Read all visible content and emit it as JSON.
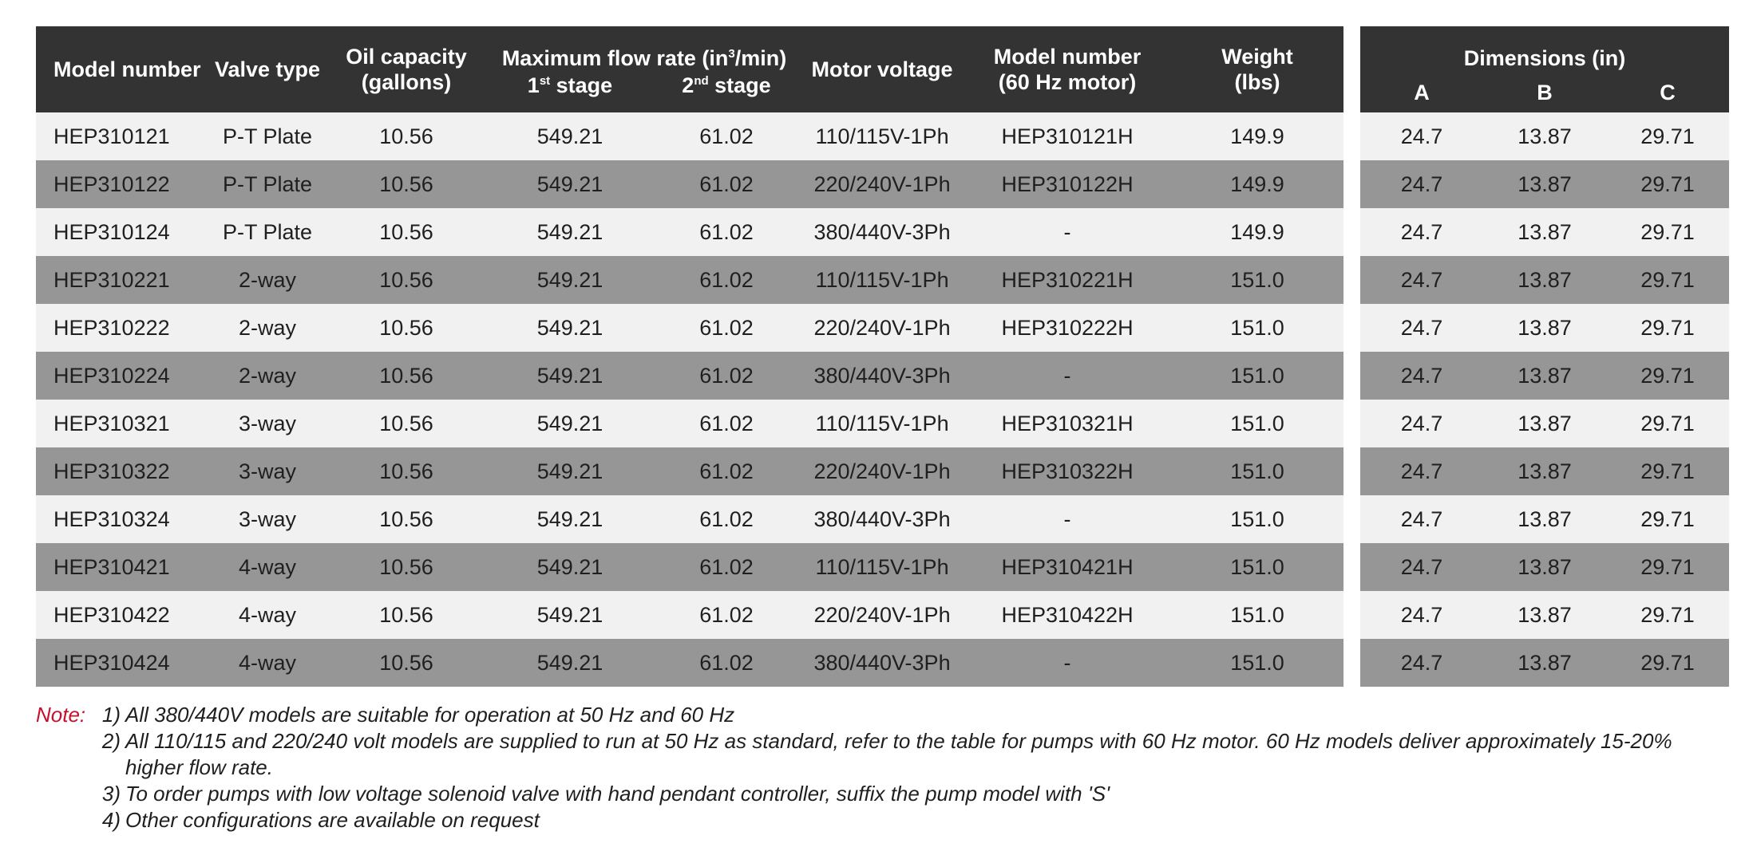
{
  "columns": {
    "model_number": "Model number",
    "valve_type": "Valve type",
    "oil_capacity_l1": "Oil capacity",
    "oil_capacity_l2": "(gallons)",
    "max_flow_pre": "Maximum flow rate (in",
    "max_flow_sup": "3",
    "max_flow_post": "/min)",
    "stage1_num": "1",
    "stage1_sup": "st",
    "stage1_word": " stage",
    "stage2_num": "2",
    "stage2_sup": "nd",
    "stage2_word": " stage",
    "motor_voltage": "Motor voltage",
    "model60_l1": "Model number",
    "model60_l2": "(60 Hz motor)",
    "weight_l1": "Weight",
    "weight_l2": "(lbs)",
    "dimensions": "Dimensions (in)",
    "dim_a": "A",
    "dim_b": "B",
    "dim_c": "C"
  },
  "rows": [
    {
      "model": "HEP310121",
      "valve": "P-T Plate",
      "oil": "10.56",
      "stage1": "549.21",
      "stage2": "61.02",
      "voltage": "110/115V-1Ph",
      "model60": "HEP310121H",
      "weight": "149.9",
      "a": "24.7",
      "b": "13.87",
      "c": "29.71"
    },
    {
      "model": "HEP310122",
      "valve": "P-T Plate",
      "oil": "10.56",
      "stage1": "549.21",
      "stage2": "61.02",
      "voltage": "220/240V-1Ph",
      "model60": "HEP310122H",
      "weight": "149.9",
      "a": "24.7",
      "b": "13.87",
      "c": "29.71"
    },
    {
      "model": "HEP310124",
      "valve": "P-T Plate",
      "oil": "10.56",
      "stage1": "549.21",
      "stage2": "61.02",
      "voltage": "380/440V-3Ph",
      "model60": "-",
      "weight": "149.9",
      "a": "24.7",
      "b": "13.87",
      "c": "29.71"
    },
    {
      "model": "HEP310221",
      "valve": "2-way",
      "oil": "10.56",
      "stage1": "549.21",
      "stage2": "61.02",
      "voltage": "110/115V-1Ph",
      "model60": "HEP310221H",
      "weight": "151.0",
      "a": "24.7",
      "b": "13.87",
      "c": "29.71"
    },
    {
      "model": "HEP310222",
      "valve": "2-way",
      "oil": "10.56",
      "stage1": "549.21",
      "stage2": "61.02",
      "voltage": "220/240V-1Ph",
      "model60": "HEP310222H",
      "weight": "151.0",
      "a": "24.7",
      "b": "13.87",
      "c": "29.71"
    },
    {
      "model": "HEP310224",
      "valve": "2-way",
      "oil": "10.56",
      "stage1": "549.21",
      "stage2": "61.02",
      "voltage": "380/440V-3Ph",
      "model60": "-",
      "weight": "151.0",
      "a": "24.7",
      "b": "13.87",
      "c": "29.71"
    },
    {
      "model": "HEP310321",
      "valve": "3-way",
      "oil": "10.56",
      "stage1": "549.21",
      "stage2": "61.02",
      "voltage": "110/115V-1Ph",
      "model60": "HEP310321H",
      "weight": "151.0",
      "a": "24.7",
      "b": "13.87",
      "c": "29.71"
    },
    {
      "model": "HEP310322",
      "valve": "3-way",
      "oil": "10.56",
      "stage1": "549.21",
      "stage2": "61.02",
      "voltage": "220/240V-1Ph",
      "model60": "HEP310322H",
      "weight": "151.0",
      "a": "24.7",
      "b": "13.87",
      "c": "29.71"
    },
    {
      "model": "HEP310324",
      "valve": "3-way",
      "oil": "10.56",
      "stage1": "549.21",
      "stage2": "61.02",
      "voltage": "380/440V-3Ph",
      "model60": "-",
      "weight": "151.0",
      "a": "24.7",
      "b": "13.87",
      "c": "29.71"
    },
    {
      "model": "HEP310421",
      "valve": "4-way",
      "oil": "10.56",
      "stage1": "549.21",
      "stage2": "61.02",
      "voltage": "110/115V-1Ph",
      "model60": "HEP310421H",
      "weight": "151.0",
      "a": "24.7",
      "b": "13.87",
      "c": "29.71"
    },
    {
      "model": "HEP310422",
      "valve": "4-way",
      "oil": "10.56",
      "stage1": "549.21",
      "stage2": "61.02",
      "voltage": "220/240V-1Ph",
      "model60": "HEP310422H",
      "weight": "151.0",
      "a": "24.7",
      "b": "13.87",
      "c": "29.71"
    },
    {
      "model": "HEP310424",
      "valve": "4-way",
      "oil": "10.56",
      "stage1": "549.21",
      "stage2": "61.02",
      "voltage": "380/440V-3Ph",
      "model60": "-",
      "weight": "151.0",
      "a": "24.7",
      "b": "13.87",
      "c": "29.71"
    }
  ],
  "notes": {
    "label": "Note:",
    "items": [
      {
        "num": "1)",
        "text": "All 380/440V models are suitable for operation at 50 Hz and 60 Hz"
      },
      {
        "num": "2)",
        "text": "All 110/115 and 220/240 volt models are supplied to run at 50 Hz as standard, refer to the table for pumps with 60 Hz motor. 60 Hz models deliver approximately 15-20% higher flow rate."
      },
      {
        "num": "3)",
        "text": "To order pumps with low voltage solenoid valve with hand pendant controller, suffix the pump model with 'S'"
      },
      {
        "num": "4)",
        "text": "Other configurations are available on request"
      }
    ]
  },
  "colors": {
    "header_bg": "#333333",
    "row_light": "#f1f1f1",
    "row_dark": "#969696",
    "note_label": "#c8102e"
  }
}
